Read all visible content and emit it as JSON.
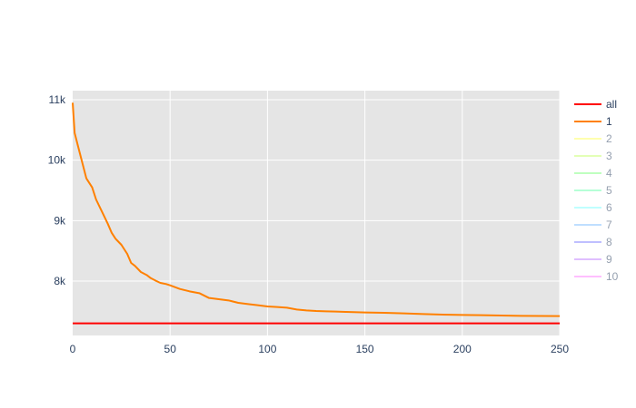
{
  "chart_data": {
    "type": "line",
    "title": "",
    "xlabel": "",
    "ylabel": "",
    "xlim": [
      0,
      250
    ],
    "ylim": [
      7100,
      11150
    ],
    "x_ticks": [
      0,
      50,
      100,
      150,
      200,
      250
    ],
    "x_tick_labels": [
      "0",
      "50",
      "100",
      "150",
      "200",
      "250"
    ],
    "y_ticks": [
      8000,
      9000,
      10000,
      11000
    ],
    "y_tick_labels": [
      "8k",
      "9k",
      "10k",
      "11k"
    ],
    "grid": true,
    "legend_position": "right",
    "plot_background": "#e5e5e5",
    "series": [
      {
        "name": "all",
        "color": "#ff0000",
        "visible": true,
        "x": [
          0,
          250
        ],
        "y": [
          7300,
          7300
        ]
      },
      {
        "name": "1",
        "color": "#ff8000",
        "visible": true,
        "x": [
          0,
          1,
          3,
          5,
          7,
          10,
          12,
          15,
          18,
          20,
          22,
          25,
          28,
          30,
          32,
          35,
          38,
          40,
          43,
          45,
          48,
          50,
          55,
          60,
          65,
          70,
          75,
          80,
          85,
          90,
          95,
          100,
          105,
          110,
          115,
          120,
          125,
          130,
          135,
          140,
          150,
          160,
          170,
          180,
          190,
          200,
          210,
          220,
          230,
          240,
          250
        ],
        "y": [
          10950,
          10450,
          10200,
          9950,
          9700,
          9550,
          9350,
          9150,
          8950,
          8800,
          8700,
          8600,
          8450,
          8300,
          8250,
          8150,
          8100,
          8050,
          8000,
          7970,
          7950,
          7930,
          7870,
          7830,
          7800,
          7720,
          7700,
          7680,
          7640,
          7620,
          7600,
          7580,
          7570,
          7560,
          7530,
          7515,
          7505,
          7500,
          7495,
          7490,
          7480,
          7475,
          7465,
          7455,
          7445,
          7440,
          7435,
          7430,
          7425,
          7422,
          7420
        ]
      },
      {
        "name": "2",
        "color": "#ffff60",
        "visible": false
      },
      {
        "name": "3",
        "color": "#c8ff70",
        "visible": false
      },
      {
        "name": "4",
        "color": "#80ff80",
        "visible": false
      },
      {
        "name": "5",
        "color": "#70ffb0",
        "visible": false
      },
      {
        "name": "6",
        "color": "#80ffff",
        "visible": false
      },
      {
        "name": "7",
        "color": "#80c0ff",
        "visible": false
      },
      {
        "name": "8",
        "color": "#8080ff",
        "visible": false
      },
      {
        "name": "9",
        "color": "#c080ff",
        "visible": false
      },
      {
        "name": "10",
        "color": "#ff80ff",
        "visible": false
      }
    ]
  }
}
